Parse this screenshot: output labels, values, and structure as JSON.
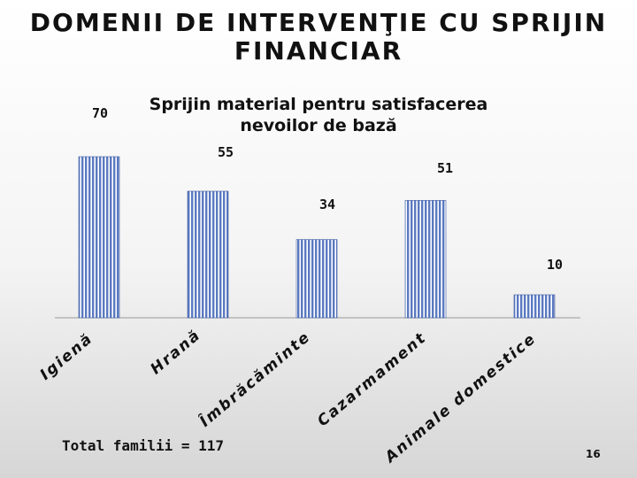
{
  "slide": {
    "title_line1": "DOMENII DE INTERVENŢIE CU SPRIJIN",
    "title_line2": "FINANCIAR",
    "footer_note": "Total familii = 117",
    "page_number": "16"
  },
  "chart_data": {
    "type": "bar",
    "title_line1": "Sprijin material pentru satisfacerea",
    "title_line2": "nevoilor de bază",
    "categories": [
      "Igienă",
      "Hrană",
      "Îmbrăcăminte",
      "Cazarmament",
      "Animale domestice"
    ],
    "values": [
      70,
      55,
      34,
      51,
      10
    ],
    "data_labels": [
      "70",
      "55",
      "34",
      "51",
      "10"
    ],
    "ylim": [
      0,
      70
    ],
    "grid": false,
    "legend": "none",
    "colors": {
      "bar_fill": "#5a79c0",
      "bar_stripe": "#ffffff",
      "bar_edge": "#3f5aa0",
      "axis": "#999999",
      "text": "#111111"
    }
  }
}
